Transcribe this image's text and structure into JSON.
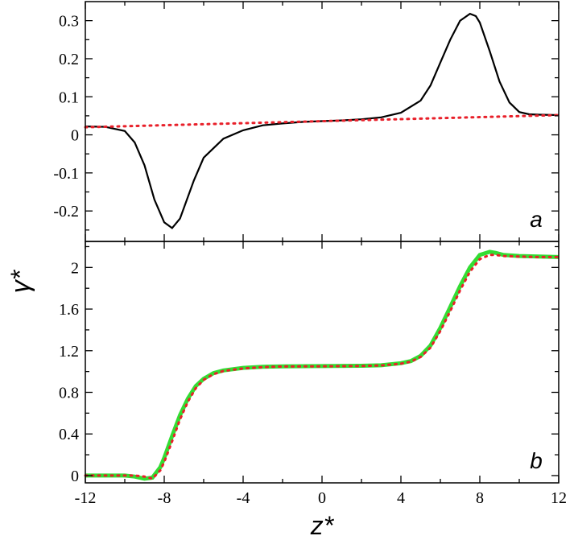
{
  "chart_data": [
    {
      "panel": "a",
      "type": "line",
      "ylabel": "γ*",
      "xlim": [
        -12,
        12
      ],
      "ylim": [
        -0.28,
        0.35
      ],
      "yticks": [
        -0.2,
        -0.1,
        0,
        0.1,
        0.2,
        0.3
      ],
      "ytick_labels": [
        "-0.2",
        "-0.1",
        "0",
        "0.1",
        "0.2",
        "0.3"
      ],
      "grid": false,
      "series": [
        {
          "style": "solid",
          "color": "#000000",
          "x": [
            -12,
            -11,
            -10,
            -9.5,
            -9,
            -8.5,
            -8,
            -7.6,
            -7.2,
            -6.5,
            -6,
            -5,
            -4,
            -3,
            -2,
            -1,
            0,
            1,
            2,
            3,
            4,
            5,
            5.5,
            6,
            6.5,
            7,
            7.5,
            7.8,
            8,
            8.5,
            9,
            9.5,
            10,
            10.5,
            11,
            12
          ],
          "y": [
            0.022,
            0.021,
            0.01,
            -0.02,
            -0.08,
            -0.17,
            -0.23,
            -0.245,
            -0.22,
            -0.12,
            -0.06,
            -0.01,
            0.012,
            0.025,
            0.03,
            0.034,
            0.036,
            0.038,
            0.041,
            0.046,
            0.058,
            0.09,
            0.13,
            0.19,
            0.25,
            0.3,
            0.318,
            0.312,
            0.295,
            0.22,
            0.14,
            0.085,
            0.06,
            0.054,
            0.053,
            0.052
          ]
        },
        {
          "style": "dotted",
          "color": "#e8202a",
          "x": [
            -12,
            12
          ],
          "y": [
            0.02,
            0.052
          ]
        }
      ],
      "annotation": "a"
    },
    {
      "panel": "b",
      "type": "line",
      "xlabel": "z*",
      "xlim": [
        -12,
        12
      ],
      "xticks": [
        -12,
        -8,
        -4,
        0,
        4,
        8,
        12
      ],
      "xtick_labels": [
        "-12",
        "-8",
        "-4",
        "0",
        "4",
        "8",
        "12"
      ],
      "ylim": [
        -0.07,
        2.25
      ],
      "yticks": [
        0,
        0.4,
        0.8,
        1.2,
        1.6,
        2
      ],
      "ytick_labels": [
        "0",
        "0.4",
        "0.8",
        "1.2",
        "1.6",
        "2"
      ],
      "grid": false,
      "series": [
        {
          "style": "solid",
          "color": "#33dd33",
          "x": [
            -12,
            -10,
            -9.5,
            -9,
            -8.6,
            -8.2,
            -8,
            -7.6,
            -7.2,
            -6.8,
            -6.4,
            -6,
            -5.5,
            -5,
            -4,
            -3,
            -2,
            0,
            2,
            3,
            4,
            4.5,
            5,
            5.5,
            6,
            6.5,
            7,
            7.5,
            8,
            8.5,
            8.8,
            9.2,
            10,
            11,
            12
          ],
          "y": [
            0,
            0,
            -0.01,
            -0.03,
            -0.02,
            0.08,
            0.17,
            0.38,
            0.58,
            0.74,
            0.86,
            0.93,
            0.985,
            1.01,
            1.035,
            1.045,
            1.05,
            1.052,
            1.055,
            1.06,
            1.08,
            1.1,
            1.15,
            1.25,
            1.42,
            1.62,
            1.82,
            2.0,
            2.12,
            2.15,
            2.14,
            2.12,
            2.11,
            2.105,
            2.1
          ]
        },
        {
          "style": "dotted",
          "color": "#e8202a",
          "x": [
            -12,
            -10,
            -9.5,
            -9,
            -8.6,
            -8.2,
            -8,
            -7.6,
            -7.2,
            -6.8,
            -6.4,
            -6,
            -5.5,
            -5,
            -4,
            -3,
            -2,
            0,
            2,
            3,
            4,
            4.5,
            5,
            5.5,
            6,
            6.5,
            7,
            7.5,
            8,
            8.5,
            8.8,
            9.2,
            10,
            11,
            12
          ],
          "y": [
            0,
            0,
            0,
            -0.01,
            -0.03,
            0.05,
            0.13,
            0.33,
            0.54,
            0.71,
            0.84,
            0.92,
            0.975,
            1.005,
            1.03,
            1.042,
            1.048,
            1.05,
            1.053,
            1.058,
            1.075,
            1.095,
            1.14,
            1.23,
            1.39,
            1.58,
            1.78,
            1.96,
            2.08,
            2.12,
            2.12,
            2.11,
            2.105,
            2.1,
            2.1
          ]
        }
      ],
      "annotation": "b"
    }
  ]
}
